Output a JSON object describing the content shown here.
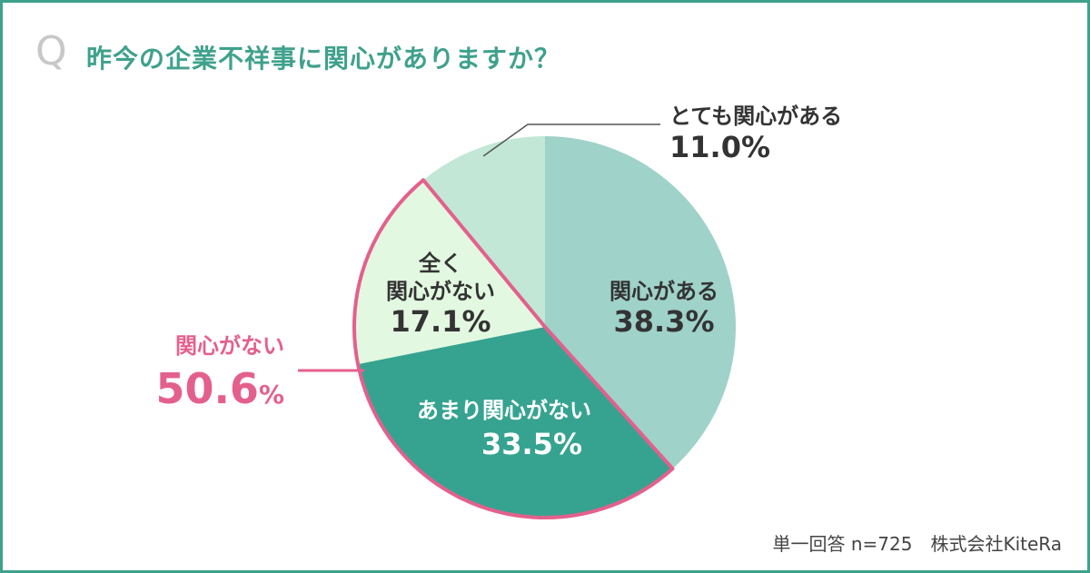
{
  "question": {
    "marker": "Q",
    "title": "昨今の企業不祥事に関心がありますか？"
  },
  "chart_data": {
    "type": "pie",
    "slices": [
      {
        "label": "関心がある",
        "value": 38.3,
        "display": "38.3%",
        "color": "#9fd2c9"
      },
      {
        "label": "あまり関心がない",
        "value": 33.5,
        "display": "33.5%",
        "color": "#36a390"
      },
      {
        "label": "全く関心がない",
        "value": 17.1,
        "display": "17.1%",
        "color": "#e2f8e0"
      },
      {
        "label": "とても関心がある",
        "value": 11.0,
        "display": "11.0%",
        "color": "#c2e7d6"
      }
    ],
    "group": {
      "label": "関心がない",
      "value": "50.6",
      "unit": "%",
      "color": "#e4608c"
    }
  },
  "footer": {
    "note": "単一回答 n=725　株式会社KiteRa"
  }
}
